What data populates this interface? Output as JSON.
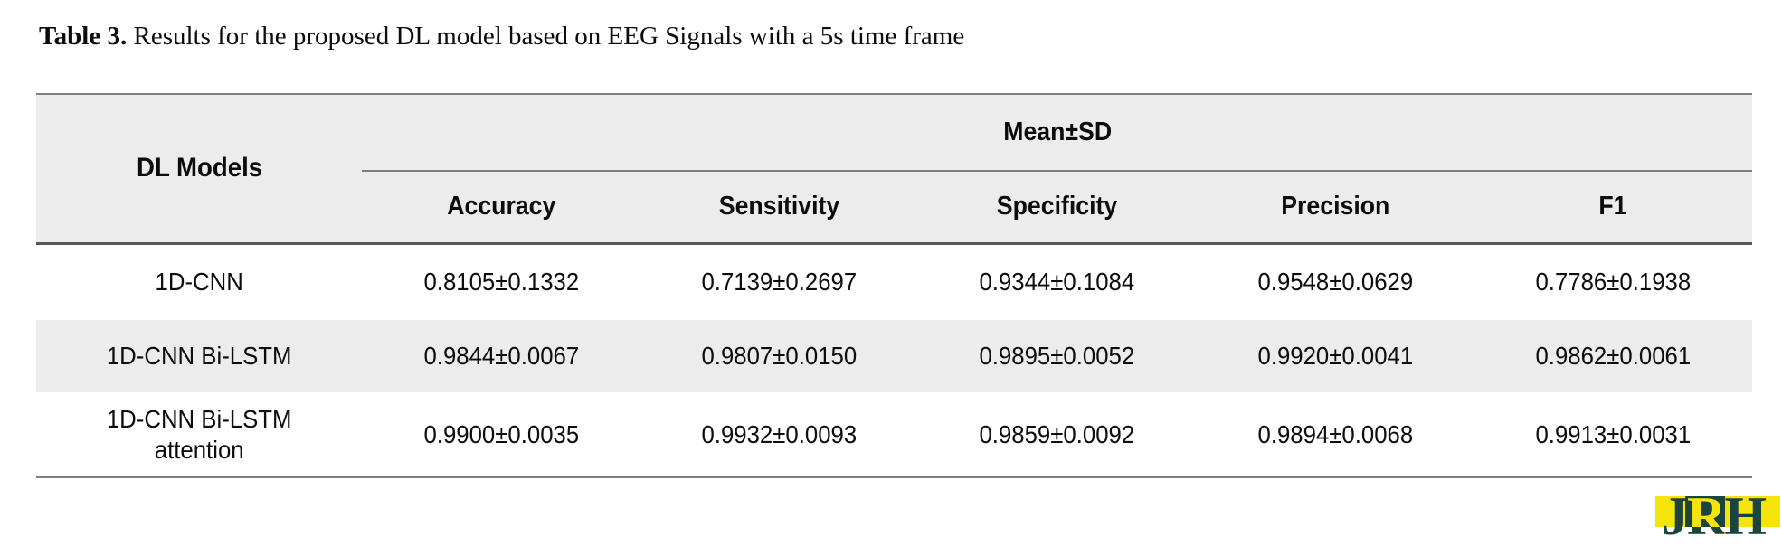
{
  "title": {
    "label": "Table 3.",
    "text": " Results for the proposed DL model based on EEG Signals with a 5s time frame"
  },
  "table": {
    "col0_header": "DL Models",
    "group_header": "Mean±SD",
    "columns": [
      "Accuracy",
      "Sensitivity",
      "Specificity",
      "Precision",
      "F1"
    ],
    "rows": [
      {
        "model": "1D-CNN",
        "values": [
          "0.8105±0.1332",
          "0.7139±0.2697",
          "0.9344±0.1084",
          "0.9548±0.0629",
          "0.7786±0.1938"
        ]
      },
      {
        "model": "1D-CNN Bi-LSTM",
        "values": [
          "0.9844±0.0067",
          "0.9807±0.0150",
          "0.9895±0.0052",
          "0.9920±0.0041",
          "0.9862±0.0061"
        ]
      },
      {
        "model": "1D-CNN Bi-LSTM",
        "model_line2": "attention",
        "values": [
          "0.9900±0.0035",
          "0.9932±0.0093",
          "0.9859±0.0092",
          "0.9894±0.0068",
          "0.9913±0.0031"
        ]
      }
    ]
  },
  "logo": {
    "letters": [
      "J",
      "R",
      "H"
    ],
    "colors": {
      "yellow": "#f5e40a",
      "dark": "#1b443e"
    }
  },
  "colors": {
    "header_bg": "#ececec",
    "stripe_bg": "#ececec",
    "rule_light": "#7f7f7f",
    "rule_dark": "#595959"
  },
  "chart_data": {
    "type": "table",
    "title": "Table 3. Results for the proposed DL model based on EEG Signals with a 5s time frame",
    "group_header": "Mean±SD",
    "columns": [
      "DL Models",
      "Accuracy",
      "Sensitivity",
      "Specificity",
      "Precision",
      "F1"
    ],
    "rows": [
      [
        "1D-CNN",
        "0.8105±0.1332",
        "0.7139±0.2697",
        "0.9344±0.1084",
        "0.9548±0.0629",
        "0.7786±0.1938"
      ],
      [
        "1D-CNN Bi-LSTM",
        "0.9844±0.0067",
        "0.9807±0.0150",
        "0.9895±0.0052",
        "0.9920±0.0041",
        "0.9862±0.0061"
      ],
      [
        "1D-CNN Bi-LSTM attention",
        "0.9900±0.0035",
        "0.9932±0.0093",
        "0.9859±0.0092",
        "0.9894±0.0068",
        "0.9913±0.0031"
      ]
    ]
  }
}
